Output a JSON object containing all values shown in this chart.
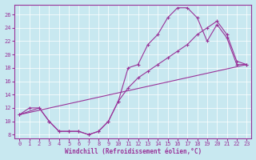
{
  "xlabel": "Windchill (Refroidissement éolien,°C)",
  "background_color": "#c8e8f0",
  "line_color": "#993399",
  "xlim": [
    -0.5,
    23.5
  ],
  "ylim": [
    7.5,
    27.5
  ],
  "xticks": [
    0,
    1,
    2,
    3,
    4,
    5,
    6,
    7,
    8,
    9,
    10,
    11,
    12,
    13,
    14,
    15,
    16,
    17,
    18,
    19,
    20,
    21,
    22,
    23
  ],
  "yticks": [
    8,
    10,
    12,
    14,
    16,
    18,
    20,
    22,
    24,
    26
  ],
  "line1_x": [
    0,
    1,
    2,
    3,
    4,
    5,
    6,
    7,
    8,
    9,
    10,
    11,
    12,
    13,
    14,
    15,
    16,
    17,
    18,
    19,
    20,
    21,
    22,
    23
  ],
  "line1_y": [
    11,
    12,
    12,
    10,
    8.5,
    8.5,
    8.5,
    8,
    8.5,
    10,
    13,
    18,
    18.5,
    21.5,
    23,
    25.5,
    27,
    27,
    25.5,
    22,
    24.5,
    22.5,
    18.5,
    18.5
  ],
  "line2_x": [
    0,
    2,
    3,
    4,
    5,
    6,
    7,
    8,
    9,
    10,
    11,
    12,
    13,
    14,
    15,
    16,
    17,
    18,
    19,
    20,
    21,
    22,
    23
  ],
  "line2_y": [
    11,
    12,
    10,
    8.5,
    8.5,
    8.5,
    8,
    8.5,
    10,
    13,
    15,
    16.5,
    17.5,
    18.5,
    19.5,
    20.5,
    21.5,
    23,
    24,
    25,
    23,
    19,
    18.5
  ],
  "line3_x": [
    0,
    23
  ],
  "line3_y": [
    11,
    18.5
  ],
  "grid_color": "#ffffff",
  "font_size_ticks": 5,
  "font_size_xlabel": 5.5
}
